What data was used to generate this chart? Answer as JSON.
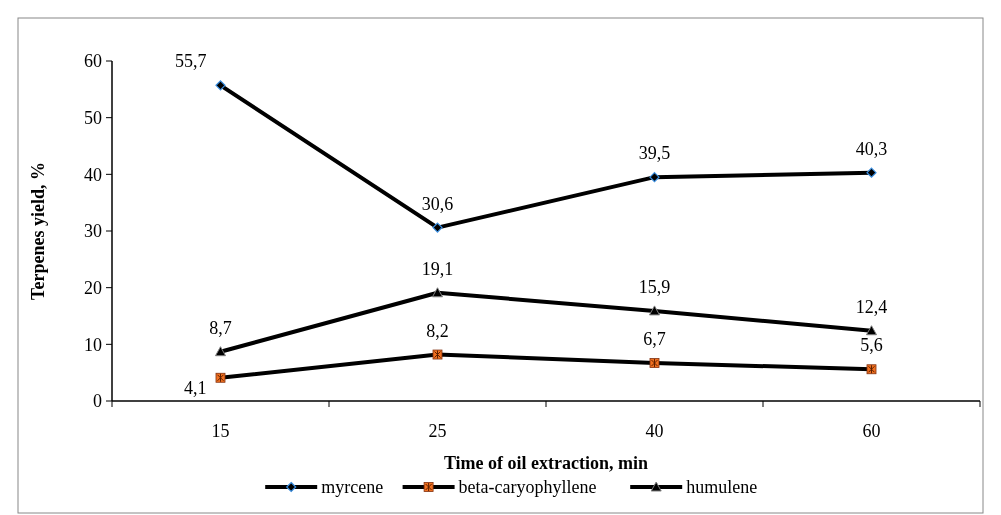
{
  "chart_data": {
    "type": "line",
    "xlabel": "Time of oil extraction, min",
    "ylabel": "Terpenes yield, %",
    "categories": [
      "15",
      "25",
      "40",
      "60"
    ],
    "ylim": [
      0,
      60
    ],
    "yticks": [
      0,
      10,
      20,
      30,
      40,
      50,
      60
    ],
    "grid": false,
    "legend": "bottom",
    "line_style": "solid",
    "series": [
      {
        "name": "myrcene",
        "color": "#000000",
        "marker": "diamond",
        "values": [
          55.7,
          30.6,
          39.5,
          40.3
        ],
        "value_labels": [
          "55,7",
          "30,6",
          "39,5",
          "40,3"
        ]
      },
      {
        "name": "beta-caryophyllene",
        "color": "#000000",
        "marker": "square",
        "values": [
          4.1,
          8.2,
          6.7,
          5.6
        ],
        "value_labels": [
          "4,1",
          "8,2",
          "6,7",
          "5,6"
        ]
      },
      {
        "name": "humulene",
        "color": "#000000",
        "marker": "triangle",
        "values": [
          8.7,
          19.1,
          15.9,
          12.4
        ],
        "value_labels": [
          "8,7",
          "19,1",
          "15,9",
          "12,4"
        ]
      }
    ]
  }
}
